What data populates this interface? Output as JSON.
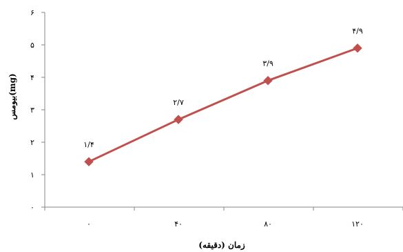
{
  "chart_data": {
    "type": "line",
    "title": "",
    "xlabel": "زمان (دقیقه)",
    "ylabel": "بیومس(mg)",
    "x": [
      0,
      40,
      80,
      120
    ],
    "x_tick_labels": [
      "۰",
      "۴۰",
      "۸۰",
      "۱۲۰"
    ],
    "ylim": [
      0,
      6
    ],
    "y_ticks": [
      0,
      1,
      2,
      3,
      4,
      5,
      6
    ],
    "y_tick_labels": [
      "۰",
      "۱",
      "۲",
      "۳",
      "۴",
      "۵",
      "۶"
    ],
    "series": [
      {
        "values": [
          1.4,
          2.7,
          3.9,
          4.9
        ],
        "data_labels": [
          "۱/۴",
          "۲/۷",
          "۳/۹",
          "۴/۹"
        ],
        "color": "#c0504d",
        "marker": "diamond"
      }
    ],
    "grid": false,
    "legend": "none"
  }
}
